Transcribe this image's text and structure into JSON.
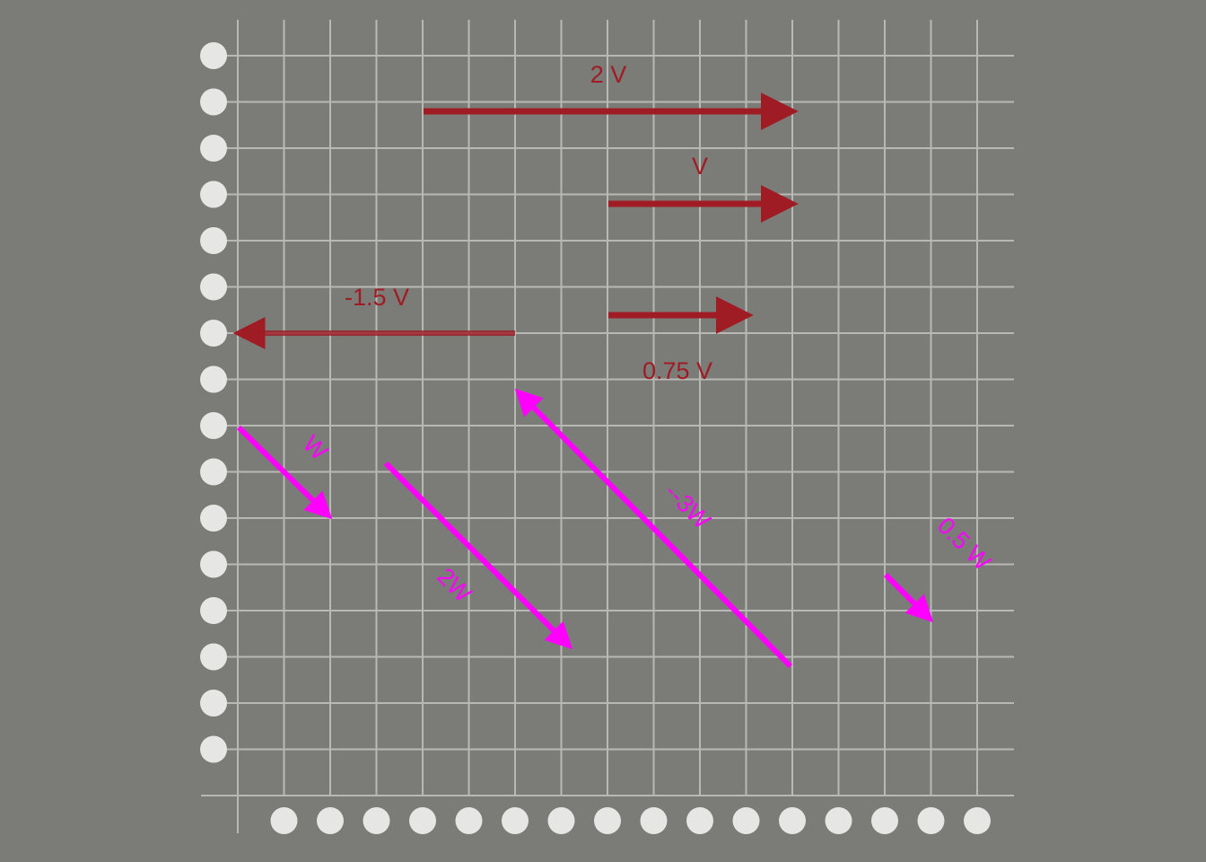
{
  "colors": {
    "background": "#7b7b77",
    "grid": "#b8b8b4",
    "dots": "#e6e6e4",
    "v_vectors": "#a01c24",
    "w_vectors": "#ff00ff"
  },
  "v_vectors": [
    {
      "label": "2 V"
    },
    {
      "label": "V"
    },
    {
      "label": "0.75 V"
    },
    {
      "label": "-1.5 V"
    }
  ],
  "w_vectors": [
    {
      "label": "W"
    },
    {
      "label": "2W"
    },
    {
      "label": "--3W"
    },
    {
      "label": "0.5 W"
    }
  ]
}
